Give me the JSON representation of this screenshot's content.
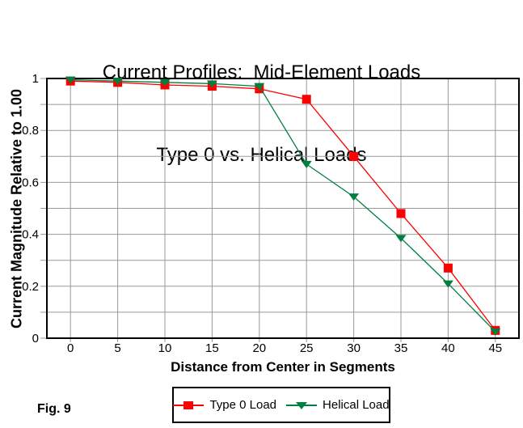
{
  "fig_label": "Fig. 9",
  "chart_data": {
    "type": "line",
    "title": "Current Profiles:  Mid-Element Loads",
    "subtitle": "Type 0 vs. Helical Loads",
    "xlabel": "Distance from Center in Segments",
    "ylabel": "Current Magnitude Relative to 1.00",
    "x": [
      0,
      5,
      10,
      15,
      20,
      25,
      30,
      35,
      40,
      45
    ],
    "series": [
      {
        "name": "Type 0 Load",
        "color": "#ff0000",
        "marker": "square",
        "values": [
          0.99,
          0.985,
          0.975,
          0.97,
          0.96,
          0.92,
          0.7,
          0.48,
          0.27,
          0.03
        ]
      },
      {
        "name": "Helical Load",
        "color": "#008040",
        "marker": "triangle-down",
        "values": [
          0.995,
          0.99,
          0.985,
          0.98,
          0.97,
          0.67,
          0.545,
          0.385,
          0.21,
          0.025
        ]
      }
    ],
    "xlim": [
      -2.5,
      47.5
    ],
    "ylim": [
      0,
      1
    ],
    "x_ticks": [
      0,
      5,
      10,
      15,
      20,
      25,
      30,
      35,
      40,
      45
    ],
    "y_ticks": [
      0,
      0.2,
      0.4,
      0.6,
      0.8,
      1
    ],
    "y_tick_labels": [
      "0",
      "0.2",
      "0.4",
      "0.6",
      "0.8",
      "1"
    ],
    "y_minor_step": 0.1,
    "grid": true,
    "grid_color": "#999999",
    "axis_color": "#000000",
    "legend_position": "bottom"
  }
}
